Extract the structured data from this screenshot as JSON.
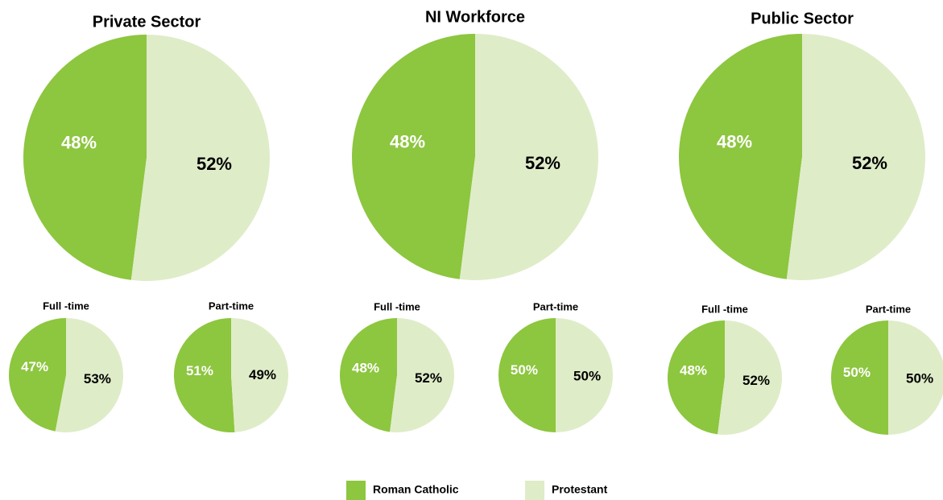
{
  "chart_data": [
    {
      "type": "pie",
      "title": "Private Sector",
      "values": [
        48,
        52
      ],
      "value_labels": [
        "48%",
        "52%"
      ]
    },
    {
      "type": "pie",
      "title": "NI Workforce",
      "values": [
        48,
        52
      ],
      "value_labels": [
        "48%",
        "52%"
      ]
    },
    {
      "type": "pie",
      "title": "Public Sector",
      "values": [
        48,
        52
      ],
      "value_labels": [
        "48%",
        "52%"
      ]
    },
    {
      "type": "pie",
      "title": "Full -time",
      "values": [
        47,
        53
      ],
      "value_labels": [
        "47%",
        "53%"
      ]
    },
    {
      "type": "pie",
      "title": "Part-time",
      "values": [
        51,
        49
      ],
      "value_labels": [
        "51%",
        "49%"
      ]
    },
    {
      "type": "pie",
      "title": "Full -time",
      "values": [
        48,
        52
      ],
      "value_labels": [
        "48%",
        "52%"
      ]
    },
    {
      "type": "pie",
      "title": "Part-time",
      "values": [
        50,
        50
      ],
      "value_labels": [
        "50%",
        "50%"
      ]
    },
    {
      "type": "pie",
      "title": "Full -time",
      "values": [
        48,
        52
      ],
      "value_labels": [
        "48%",
        "52%"
      ]
    },
    {
      "type": "pie",
      "title": "Part-time",
      "values": [
        50,
        50
      ],
      "value_labels": [
        "50%",
        "50%"
      ]
    }
  ],
  "legend": {
    "labels": [
      "Roman Catholic",
      "Protestant"
    ],
    "colors": [
      "#8dc63f",
      "#dfecc8"
    ]
  }
}
